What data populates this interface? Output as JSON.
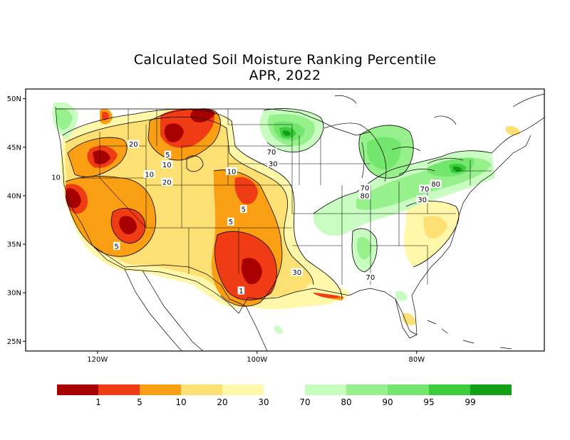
{
  "title": {
    "line1": "Calculated Soil Moisture Ranking Percentile",
    "line2": "APR, 2022"
  },
  "axes": {
    "y_ticks": [
      {
        "lat": 50,
        "label": "50N"
      },
      {
        "lat": 45,
        "label": "45N"
      },
      {
        "lat": 40,
        "label": "40N"
      },
      {
        "lat": 35,
        "label": "35N"
      },
      {
        "lat": 30,
        "label": "30N"
      },
      {
        "lat": 25,
        "label": "25N"
      }
    ],
    "x_ticks": [
      {
        "lon": -120,
        "label": "120W"
      },
      {
        "lon": -100,
        "label": "100W"
      },
      {
        "lon": -80,
        "label": "80W"
      }
    ],
    "lon_range": [
      -129,
      -64
    ],
    "lat_range": [
      24,
      51
    ]
  },
  "legend": {
    "colors": [
      "#a80000",
      "#f03c14",
      "#fa9e14",
      "#fde073",
      "#fff8aa",
      "#ffffff",
      "#c8fcc0",
      "#96f08c",
      "#73e66e",
      "#3ccd3c",
      "#14a014"
    ],
    "labels": [
      "1",
      "5",
      "10",
      "20",
      "30",
      "70",
      "80",
      "90",
      "95",
      "99"
    ]
  },
  "colors": {
    "very_dry": "#a80000",
    "dry_5": "#f03c14",
    "dry_10": "#fa9e14",
    "dry_20": "#fde073",
    "dry_30": "#fff8aa",
    "wet_70": "#c8fcc0",
    "wet_80": "#96f08c",
    "wet_90": "#73e66e",
    "wet_95": "#3ccd3c",
    "wet_99": "#14a014"
  },
  "contour_labels": [
    {
      "text": "20",
      "lon": -115.5,
      "lat": 45.3
    },
    {
      "text": "5",
      "lon": -111.2,
      "lat": 44.2
    },
    {
      "text": "10",
      "lon": -111.3,
      "lat": 43.2
    },
    {
      "text": "10",
      "lon": -125.2,
      "lat": 41.9
    },
    {
      "text": "10",
      "lon": -113.5,
      "lat": 42.2
    },
    {
      "text": "20",
      "lon": -111.3,
      "lat": 41.4
    },
    {
      "text": "10",
      "lon": -103.2,
      "lat": 42.5
    },
    {
      "text": "70",
      "lon": -98.2,
      "lat": 44.5
    },
    {
      "text": "30",
      "lon": -98.0,
      "lat": 43.3
    },
    {
      "text": "5",
      "lon": -101.7,
      "lat": 38.6
    },
    {
      "text": "5",
      "lon": -103.3,
      "lat": 37.3
    },
    {
      "text": "5",
      "lon": -117.6,
      "lat": 34.8
    },
    {
      "text": "1",
      "lon": -102.0,
      "lat": 30.2
    },
    {
      "text": "30",
      "lon": -95.0,
      "lat": 32.1
    },
    {
      "text": "70",
      "lon": -86.5,
      "lat": 40.8
    },
    {
      "text": "80",
      "lon": -86.5,
      "lat": 40.0
    },
    {
      "text": "70",
      "lon": -85.8,
      "lat": 31.6
    },
    {
      "text": "70",
      "lon": -79.0,
      "lat": 40.7
    },
    {
      "text": "80",
      "lon": -77.6,
      "lat": 41.2
    },
    {
      "text": "30",
      "lon": -79.3,
      "lat": 39.6
    }
  ]
}
